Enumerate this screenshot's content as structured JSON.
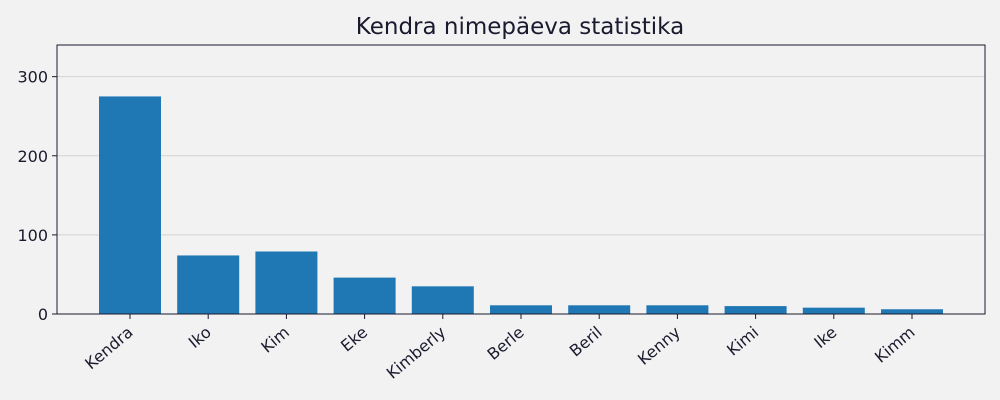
{
  "chart_data": {
    "type": "bar",
    "title": "Kendra nimepäeva statistika",
    "xlabel": "",
    "ylabel": "",
    "categories": [
      "Kendra",
      "Iko",
      "Kim",
      "Eke",
      "Kimberly",
      "Berle",
      "Beril",
      "Kenny",
      "Kimi",
      "Ike",
      "Kimm"
    ],
    "values": [
      275,
      74,
      79,
      46,
      35,
      11,
      11,
      11,
      10,
      8,
      6
    ],
    "ylim": [
      0,
      340
    ],
    "yticks": [
      0,
      100,
      200,
      300
    ],
    "grid": "horizontal",
    "colors": {
      "bar": "#1f77b4",
      "background": "#f2f2f2",
      "grid": "#d3d3d3",
      "axis": "#1a1a2e",
      "text": "#1a1a2e"
    }
  }
}
